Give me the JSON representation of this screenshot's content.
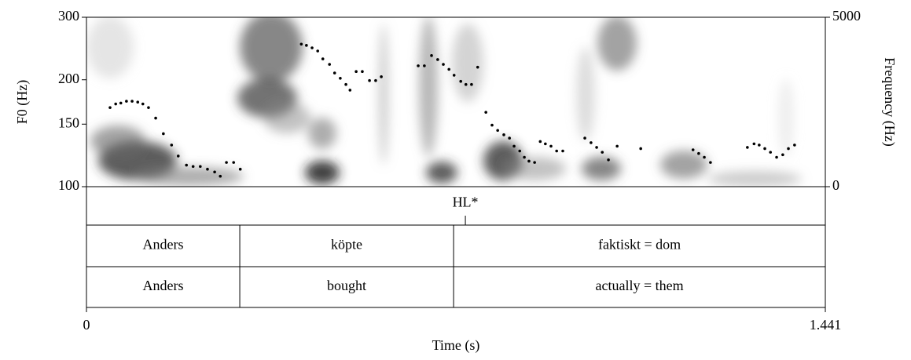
{
  "chart_data": {
    "type": "scatter",
    "y_label": "F0 (Hz)",
    "y2_label": "Frequency (Hz)",
    "x_label": "Time (s)",
    "color": "#000000",
    "ylog": true,
    "xlim": [
      0,
      1.441
    ],
    "xticks": [
      0,
      1.441
    ],
    "ylim": [
      100,
      300
    ],
    "yticks": [
      100,
      150,
      200,
      300
    ],
    "y2lim": [
      0,
      5000
    ],
    "y2ticks": [
      0,
      5000
    ],
    "x": [
      0.046,
      0.057,
      0.067,
      0.078,
      0.089,
      0.1,
      0.11,
      0.121,
      0.135,
      0.15,
      0.166,
      0.179,
      0.195,
      0.208,
      0.222,
      0.236,
      0.25,
      0.261,
      0.273,
      0.287,
      0.3,
      0.419,
      0.429,
      0.44,
      0.451,
      0.461,
      0.474,
      0.484,
      0.495,
      0.506,
      0.514,
      0.526,
      0.538,
      0.552,
      0.564,
      0.575,
      0.647,
      0.659,
      0.673,
      0.685,
      0.696,
      0.707,
      0.717,
      0.73,
      0.74,
      0.751,
      0.763,
      0.779,
      0.791,
      0.802,
      0.814,
      0.825,
      0.834,
      0.845,
      0.854,
      0.863,
      0.874,
      0.885,
      0.895,
      0.906,
      0.917,
      0.929,
      0.972,
      0.984,
      0.995,
      1.006,
      1.018,
      1.035,
      1.081,
      1.183,
      1.194,
      1.205,
      1.217,
      1.289,
      1.302,
      1.312,
      1.323,
      1.334,
      1.346,
      1.358,
      1.369,
      1.381
    ],
    "values": [
      167,
      171,
      172,
      174,
      174,
      173,
      171,
      167,
      156,
      141,
      131,
      122,
      115,
      114,
      114,
      112,
      110,
      107,
      117,
      117,
      112,
      252,
      250,
      246,
      241,
      229,
      221,
      209,
      202,
      194,
      187,
      211,
      211,
      199,
      199,
      204,
      219,
      219,
      234,
      228,
      221,
      214,
      206,
      198,
      194,
      194,
      217,
      162,
      149,
      144,
      140,
      137,
      130,
      126,
      121,
      118,
      117,
      134,
      132,
      130,
      126,
      126,
      137,
      133,
      129,
      125,
      119,
      130,
      128,
      127,
      124,
      121,
      117,
      129,
      132,
      131,
      128,
      125,
      121,
      123,
      128,
      131
    ],
    "tiers": [
      {
        "times": [
          0.739
        ],
        "labels": [
          "HL*"
        ]
      },
      {
        "boundaries": [
          0.299,
          0.716
        ],
        "labels": [
          "Anders",
          "köpte",
          "faktiskt = dom"
        ]
      },
      {
        "boundaries": [
          0.299,
          0.716
        ],
        "labels": [
          "Anders",
          "bought",
          "actually = them"
        ]
      }
    ]
  }
}
